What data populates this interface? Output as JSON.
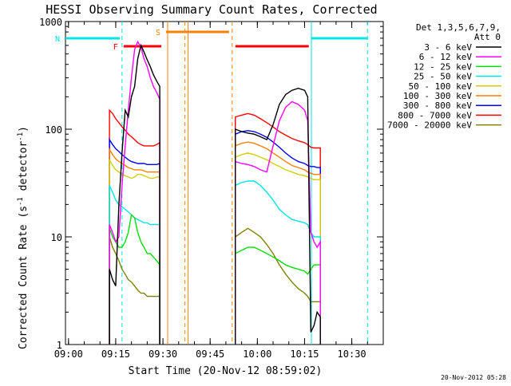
{
  "chart_data": {
    "type": "line",
    "title": "HESSI Observing Summary Count Rates, Corrected",
    "xlabel": "Start Time (20-Nov-12 08:59:02)",
    "ylabel_main": "Corrected Count Rate (s",
    "ylabel_exp1": "-1",
    "ylabel_mid": " detector",
    "ylabel_exp2": "-1",
    "ylabel_end": ")",
    "y_scale": "log",
    "ylim": [
      1,
      1000
    ],
    "xlim": [
      "08:59:02",
      "10:40:00"
    ],
    "x_ticks": [
      "09:00",
      "09:15",
      "09:30",
      "09:45",
      "10:00",
      "10:15",
      "10:30"
    ],
    "y_ticks": [
      "1",
      "10",
      "100",
      "1000"
    ],
    "grid": false,
    "legend_position": "right",
    "legend_title_1": "Det 1,3,5,6,7,9,",
    "legend_title_2": "Att 0",
    "timestamp": "20-Nov-2012 05:28",
    "flag_labels": {
      "F": "F",
      "N": "N",
      "S": "S"
    },
    "flags": [
      {
        "label": "N",
        "color": "#00e5e5",
        "segments": [
          [
            "08:59:02",
            "09:16:20"
          ],
          [
            "10:17:10",
            "10:35:00"
          ]
        ]
      },
      {
        "label": "F",
        "color": "#ff0000",
        "segments": [
          [
            "09:17:30",
            "09:29:30"
          ],
          [
            "09:53:00",
            "10:16:20"
          ]
        ]
      },
      {
        "label": "S",
        "color": "#ff8000",
        "segments": [
          [
            "09:31:00",
            "09:51:00"
          ]
        ]
      }
    ],
    "vertical_markers": [
      {
        "x": "09:17:00",
        "color": "#00e5e5",
        "style": "dashed"
      },
      {
        "x": "09:31:30",
        "color": "#ff8000",
        "style": "solid"
      },
      {
        "x": "09:37:00",
        "color": "#ff8000",
        "style": "dashed"
      },
      {
        "x": "09:38:00",
        "color": "#ff8000",
        "style": "solid"
      },
      {
        "x": "09:52:00",
        "color": "#ff8000",
        "style": "dashed"
      },
      {
        "x": "10:17:10",
        "color": "#00e5e5",
        "style": "solid"
      },
      {
        "x": "10:35:00",
        "color": "#00e5e5",
        "style": "dashed"
      }
    ],
    "series": [
      {
        "name": "3 - 6 keV",
        "color": "#000000",
        "segments": [
          {
            "x": [
              "09:13:00",
              "09:14:00",
              "09:15:00",
              "09:16:00",
              "09:17:00",
              "09:18:00",
              "09:19:00",
              "09:20:00",
              "09:21:00",
              "09:22:00",
              "09:23:00",
              "09:24:00",
              "09:25:00",
              "09:26:00",
              "09:27:00",
              "09:28:00",
              "09:29:00"
            ],
            "y": [
              5,
              4,
              3.5,
              20,
              60,
              150,
              130,
              200,
              250,
              450,
              600,
              520,
              440,
              380,
              320,
              280,
              250
            ]
          },
          {
            "x": [
              "09:53:00",
              "09:55:00",
              "09:57:00",
              "09:59:00",
              "10:01:00",
              "10:03:00",
              "10:05:00",
              "10:07:00",
              "10:09:00",
              "10:11:00",
              "10:13:00",
              "10:15:00",
              "10:16:00",
              "10:17:00",
              "10:18:00",
              "10:19:00",
              "10:20:00"
            ],
            "y": [
              100,
              95,
              92,
              90,
              85,
              80,
              110,
              170,
              210,
              230,
              240,
              230,
              200,
              1.3,
              1.5,
              2,
              1.8
            ]
          }
        ]
      },
      {
        "name": "6 - 12 keV",
        "color": "#ff00ff",
        "segments": [
          {
            "x": [
              "09:13:00",
              "09:14:00",
              "09:15:00",
              "09:16:00",
              "09:17:00",
              "09:18:00",
              "09:19:00",
              "09:20:00",
              "09:21:00",
              "09:22:00",
              "09:23:00",
              "09:24:00",
              "09:25:00",
              "09:26:00",
              "09:27:00",
              "09:28:00",
              "09:29:00"
            ],
            "y": [
              13,
              11,
              9,
              10,
              30,
              70,
              150,
              300,
              550,
              650,
              580,
              450,
              380,
              300,
              250,
              220,
              190
            ]
          },
          {
            "x": [
              "09:53:00",
              "09:55:00",
              "09:57:00",
              "09:59:00",
              "10:01:00",
              "10:03:00",
              "10:05:00",
              "10:07:00",
              "10:09:00",
              "10:11:00",
              "10:13:00",
              "10:15:00",
              "10:16:00",
              "10:17:00",
              "10:18:00",
              "10:19:00",
              "10:20:00"
            ],
            "y": [
              50,
              48,
              47,
              45,
              42,
              40,
              70,
              120,
              160,
              180,
              170,
              150,
              120,
              11,
              9,
              8,
              9
            ]
          }
        ]
      },
      {
        "name": "12 - 25 keV",
        "color": "#00e000",
        "segments": [
          {
            "x": [
              "09:13:00",
              "09:14:00",
              "09:15:00",
              "09:16:00",
              "09:17:00",
              "09:18:00",
              "09:19:00",
              "09:20:00",
              "09:21:00",
              "09:22:00",
              "09:23:00",
              "09:24:00",
              "09:25:00",
              "09:26:00",
              "09:27:00",
              "09:28:00",
              "09:29:00"
            ],
            "y": [
              12,
              10,
              9,
              8,
              8,
              9,
              11,
              16,
              15,
              11,
              9,
              8,
              7,
              7,
              6.5,
              6,
              5.5
            ]
          },
          {
            "x": [
              "09:53:00",
              "09:55:00",
              "09:57:00",
              "09:59:00",
              "10:01:00",
              "10:03:00",
              "10:05:00",
              "10:07:00",
              "10:09:00",
              "10:11:00",
              "10:13:00",
              "10:15:00",
              "10:16:00",
              "10:17:00",
              "10:18:00",
              "10:19:00",
              "10:20:00"
            ],
            "y": [
              7,
              7.5,
              8,
              8,
              7.5,
              7,
              6.5,
              6,
              5.5,
              5.2,
              5,
              4.8,
              4.5,
              5,
              5.5,
              5.5,
              5.5
            ]
          }
        ]
      },
      {
        "name": "25 - 50 keV",
        "color": "#00e5e5",
        "segments": [
          {
            "x": [
              "09:13:00",
              "09:14:00",
              "09:15:00",
              "09:16:00",
              "09:17:00",
              "09:18:00",
              "09:19:00",
              "09:20:00",
              "09:21:00",
              "09:22:00",
              "09:23:00",
              "09:24:00",
              "09:25:00",
              "09:26:00",
              "09:27:00",
              "09:28:00",
              "09:29:00"
            ],
            "y": [
              30,
              26,
              22,
              20,
              19,
              18,
              17,
              16,
              15,
              14.5,
              14,
              13.5,
              13.5,
              13,
              13,
              13,
              13
            ]
          },
          {
            "x": [
              "09:53:00",
              "09:55:00",
              "09:57:00",
              "09:59:00",
              "10:01:00",
              "10:03:00",
              "10:05:00",
              "10:07:00",
              "10:09:00",
              "10:11:00",
              "10:13:00",
              "10:15:00",
              "10:16:00",
              "10:17:00",
              "10:18:00",
              "10:19:00",
              "10:20:00"
            ],
            "y": [
              30,
              32,
              33,
              33,
              30,
              26,
              22,
              18,
              16,
              14.5,
              14,
              13.5,
              13,
              11,
              10,
              10,
              10
            ]
          }
        ]
      },
      {
        "name": "50 - 100 keV",
        "color": "#d0d000",
        "segments": [
          {
            "x": [
              "09:13:00",
              "09:14:00",
              "09:15:00",
              "09:16:00",
              "09:17:00",
              "09:18:00",
              "09:19:00",
              "09:20:00",
              "09:21:00",
              "09:22:00",
              "09:23:00",
              "09:24:00",
              "09:25:00",
              "09:26:00",
              "09:27:00",
              "09:28:00",
              "09:29:00"
            ],
            "y": [
              52,
              46,
              42,
              40,
              38,
              37,
              36,
              35,
              36,
              38,
              38,
              37,
              36,
              35,
              35,
              36,
              36
            ]
          },
          {
            "x": [
              "09:53:00",
              "09:55:00",
              "09:57:00",
              "09:59:00",
              "10:01:00",
              "10:03:00",
              "10:05:00",
              "10:07:00",
              "10:09:00",
              "10:11:00",
              "10:13:00",
              "10:15:00",
              "10:16:00",
              "10:17:00",
              "10:18:00",
              "10:19:00",
              "10:20:00"
            ],
            "y": [
              55,
              58,
              60,
              58,
              55,
              52,
              48,
              45,
              42,
              40,
              38,
              37,
              36,
              35,
              34,
              34,
              34
            ]
          }
        ]
      },
      {
        "name": "100 - 300 keV",
        "color": "#ff8000",
        "segments": [
          {
            "x": [
              "09:13:00",
              "09:14:00",
              "09:15:00",
              "09:16:00",
              "09:17:00",
              "09:18:00",
              "09:19:00",
              "09:20:00",
              "09:21:00",
              "09:22:00",
              "09:23:00",
              "09:24:00",
              "09:25:00",
              "09:26:00",
              "09:27:00",
              "09:28:00",
              "09:29:00"
            ],
            "y": [
              65,
              58,
              53,
              50,
              48,
              46,
              44,
              43,
              42,
              42,
              42,
              41,
              40,
              40,
              40,
              40,
              40
            ]
          },
          {
            "x": [
              "09:53:00",
              "09:55:00",
              "09:57:00",
              "09:59:00",
              "10:01:00",
              "10:03:00",
              "10:05:00",
              "10:07:00",
              "10:09:00",
              "10:11:00",
              "10:13:00",
              "10:15:00",
              "10:16:00",
              "10:17:00",
              "10:18:00",
              "10:19:00",
              "10:20:00"
            ],
            "y": [
              70,
              74,
              76,
              74,
              70,
              66,
              60,
              55,
              50,
              46,
              44,
              42,
              40,
              39,
              38,
              38,
              38
            ]
          }
        ]
      },
      {
        "name": "300 - 800 keV",
        "color": "#0000ff",
        "segments": [
          {
            "x": [
              "09:13:00",
              "09:14:00",
              "09:15:00",
              "09:16:00",
              "09:17:00",
              "09:18:00",
              "09:19:00",
              "09:20:00",
              "09:21:00",
              "09:22:00",
              "09:23:00",
              "09:24:00",
              "09:25:00",
              "09:26:00",
              "09:27:00",
              "09:28:00",
              "09:29:00"
            ],
            "y": [
              80,
              72,
              66,
              62,
              58,
              55,
              52,
              50,
              49,
              48,
              48,
              48,
              47,
              47,
              47,
              47,
              48
            ]
          },
          {
            "x": [
              "09:53:00",
              "09:55:00",
              "09:57:00",
              "09:59:00",
              "10:01:00",
              "10:03:00",
              "10:05:00",
              "10:07:00",
              "10:09:00",
              "10:11:00",
              "10:13:00",
              "10:15:00",
              "10:16:00",
              "10:17:00",
              "10:18:00",
              "10:19:00",
              "10:20:00"
            ],
            "y": [
              90,
              95,
              97,
              95,
              90,
              84,
              76,
              68,
              60,
              54,
              50,
              48,
              46,
              45,
              45,
              44,
              44
            ]
          }
        ]
      },
      {
        "name": "800 - 7000 keV",
        "color": "#ff0000",
        "segments": [
          {
            "x": [
              "09:13:00",
              "09:14:00",
              "09:15:00",
              "09:16:00",
              "09:17:00",
              "09:18:00",
              "09:19:00",
              "09:20:00",
              "09:21:00",
              "09:22:00",
              "09:23:00",
              "09:24:00",
              "09:25:00",
              "09:26:00",
              "09:27:00",
              "09:28:00",
              "09:29:00"
            ],
            "y": [
              150,
              140,
              125,
              115,
              105,
              98,
              90,
              85,
              80,
              75,
              72,
              70,
              70,
              70,
              70,
              72,
              75
            ]
          },
          {
            "x": [
              "09:53:00",
              "09:55:00",
              "09:57:00",
              "09:59:00",
              "10:01:00",
              "10:03:00",
              "10:05:00",
              "10:07:00",
              "10:09:00",
              "10:11:00",
              "10:13:00",
              "10:15:00",
              "10:16:00",
              "10:17:00",
              "10:18:00",
              "10:19:00",
              "10:20:00"
            ],
            "y": [
              130,
              135,
              140,
              135,
              125,
              115,
              105,
              95,
              88,
              82,
              78,
              75,
              72,
              68,
              67,
              67,
              67
            ]
          }
        ]
      },
      {
        "name": "7000 - 20000 keV",
        "color": "#808000",
        "segments": [
          {
            "x": [
              "09:13:00",
              "09:14:00",
              "09:15:00",
              "09:16:00",
              "09:17:00",
              "09:18:00",
              "09:19:00",
              "09:20:00",
              "09:21:00",
              "09:22:00",
              "09:23:00",
              "09:24:00",
              "09:25:00",
              "09:26:00",
              "09:27:00",
              "09:28:00",
              "09:29:00"
            ],
            "y": [
              10,
              8,
              7,
              6,
              5,
              4.5,
              4,
              3.8,
              3.5,
              3.2,
              3,
              3,
              2.8,
              2.8,
              2.8,
              2.8,
              2.8
            ]
          },
          {
            "x": [
              "09:53:00",
              "09:55:00",
              "09:57:00",
              "09:59:00",
              "10:01:00",
              "10:03:00",
              "10:05:00",
              "10:07:00",
              "10:09:00",
              "10:11:00",
              "10:13:00",
              "10:15:00",
              "10:16:00",
              "10:17:00",
              "10:18:00",
              "10:19:00",
              "10:20:00"
            ],
            "y": [
              10,
              11,
              12,
              11,
              10,
              8.5,
              7,
              5.5,
              4.5,
              3.8,
              3.3,
              3,
              2.8,
              2.5,
              2.5,
              2.5,
              2.5
            ]
          }
        ]
      }
    ]
  }
}
